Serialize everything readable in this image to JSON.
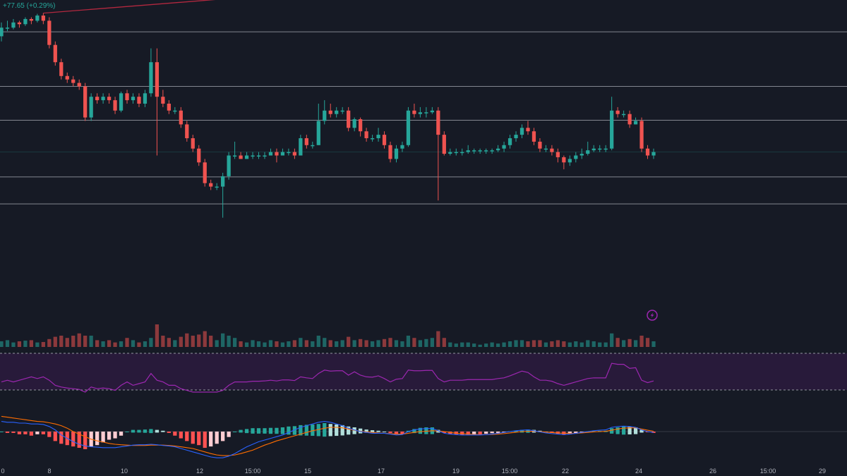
{
  "legend": {
    "change": "+77.65 (+0.29%)"
  },
  "colors": {
    "background": "#161a25",
    "up": "#26a69a",
    "down": "#ef5350",
    "level_line": "#b2b5be",
    "trendline": "#b2283f",
    "rsi_line": "#9c27b0",
    "rsi_band": "#2a1b3d",
    "macd_line": "#2962ff",
    "signal_line": "#ff6d00",
    "hist_up_strong": "#26a69a",
    "hist_up_weak": "#b2dfdb",
    "hist_down_strong": "#ff5252",
    "hist_down_weak": "#ffcdd2"
  },
  "icons": {
    "alert": "lightning-icon"
  },
  "chart_data": {
    "type": "candlestick",
    "x_ticks": [
      "0",
      "8",
      "10",
      "12",
      "15:00",
      "15",
      "17",
      "19",
      "15:00",
      "22",
      "24",
      "26",
      "15:00",
      "29"
    ],
    "horizontal_levels": [
      0.908,
      0.75,
      0.652,
      0.488,
      0.41
    ],
    "candles": [
      [
        0.895,
        0.92,
        0.935,
        0.88
      ],
      [
        0.92,
        0.92,
        0.94,
        0.91
      ],
      [
        0.92,
        0.935,
        0.945,
        0.915
      ],
      [
        0.935,
        0.93,
        0.94,
        0.92
      ],
      [
        0.93,
        0.945,
        0.95,
        0.925
      ],
      [
        0.945,
        0.94,
        0.95,
        0.93
      ],
      [
        0.94,
        0.955,
        0.96,
        0.935
      ],
      [
        0.955,
        0.94,
        0.962,
        0.93
      ],
      [
        0.94,
        0.87,
        0.95,
        0.86
      ],
      [
        0.87,
        0.82,
        0.88,
        0.81
      ],
      [
        0.82,
        0.78,
        0.83,
        0.77
      ],
      [
        0.78,
        0.77,
        0.79,
        0.76
      ],
      [
        0.77,
        0.76,
        0.78,
        0.75
      ],
      [
        0.76,
        0.75,
        0.77,
        0.74
      ],
      [
        0.75,
        0.66,
        0.76,
        0.65
      ],
      [
        0.66,
        0.72,
        0.73,
        0.65
      ],
      [
        0.72,
        0.71,
        0.73,
        0.7
      ],
      [
        0.71,
        0.72,
        0.73,
        0.7
      ],
      [
        0.72,
        0.71,
        0.73,
        0.7
      ],
      [
        0.71,
        0.68,
        0.72,
        0.67
      ],
      [
        0.68,
        0.73,
        0.735,
        0.675
      ],
      [
        0.73,
        0.71,
        0.74,
        0.7
      ],
      [
        0.71,
        0.72,
        0.73,
        0.7
      ],
      [
        0.72,
        0.7,
        0.73,
        0.69
      ],
      [
        0.7,
        0.73,
        0.74,
        0.69
      ],
      [
        0.73,
        0.82,
        0.86,
        0.72
      ],
      [
        0.82,
        0.72,
        0.86,
        0.55
      ],
      [
        0.72,
        0.7,
        0.74,
        0.69
      ],
      [
        0.7,
        0.68,
        0.71,
        0.67
      ],
      [
        0.68,
        0.68,
        0.69,
        0.67
      ],
      [
        0.68,
        0.64,
        0.69,
        0.63
      ],
      [
        0.64,
        0.6,
        0.65,
        0.59
      ],
      [
        0.6,
        0.57,
        0.61,
        0.56
      ],
      [
        0.57,
        0.53,
        0.58,
        0.52
      ],
      [
        0.53,
        0.47,
        0.54,
        0.46
      ],
      [
        0.47,
        0.46,
        0.48,
        0.45
      ],
      [
        0.46,
        0.46,
        0.47,
        0.45
      ],
      [
        0.46,
        0.49,
        0.5,
        0.37
      ],
      [
        0.49,
        0.55,
        0.56,
        0.48
      ],
      [
        0.55,
        0.55,
        0.59,
        0.54
      ],
      [
        0.55,
        0.54,
        0.56,
        0.54
      ],
      [
        0.54,
        0.55,
        0.56,
        0.54
      ],
      [
        0.55,
        0.55,
        0.56,
        0.54
      ],
      [
        0.55,
        0.55,
        0.56,
        0.54
      ],
      [
        0.55,
        0.55,
        0.56,
        0.54
      ],
      [
        0.55,
        0.56,
        0.57,
        0.55
      ],
      [
        0.56,
        0.55,
        0.57,
        0.53
      ],
      [
        0.55,
        0.56,
        0.57,
        0.55
      ],
      [
        0.56,
        0.56,
        0.57,
        0.55
      ],
      [
        0.56,
        0.55,
        0.57,
        0.54
      ],
      [
        0.55,
        0.6,
        0.61,
        0.55
      ],
      [
        0.6,
        0.58,
        0.61,
        0.57
      ],
      [
        0.58,
        0.58,
        0.59,
        0.57
      ],
      [
        0.58,
        0.65,
        0.7,
        0.58
      ],
      [
        0.65,
        0.68,
        0.71,
        0.64
      ],
      [
        0.68,
        0.67,
        0.7,
        0.66
      ],
      [
        0.67,
        0.68,
        0.69,
        0.66
      ],
      [
        0.68,
        0.68,
        0.69,
        0.67
      ],
      [
        0.68,
        0.63,
        0.69,
        0.62
      ],
      [
        0.63,
        0.655,
        0.66,
        0.62
      ],
      [
        0.655,
        0.62,
        0.66,
        0.605
      ],
      [
        0.62,
        0.6,
        0.63,
        0.59
      ],
      [
        0.6,
        0.6,
        0.61,
        0.59
      ],
      [
        0.6,
        0.61,
        0.63,
        0.59
      ],
      [
        0.61,
        0.58,
        0.62,
        0.57
      ],
      [
        0.58,
        0.54,
        0.59,
        0.53
      ],
      [
        0.54,
        0.57,
        0.58,
        0.53
      ],
      [
        0.57,
        0.58,
        0.59,
        0.56
      ],
      [
        0.58,
        0.68,
        0.69,
        0.575
      ],
      [
        0.68,
        0.67,
        0.7,
        0.66
      ],
      [
        0.67,
        0.675,
        0.69,
        0.66
      ],
      [
        0.675,
        0.675,
        0.69,
        0.66
      ],
      [
        0.675,
        0.68,
        0.69,
        0.67
      ],
      [
        0.68,
        0.61,
        0.69,
        0.42
      ],
      [
        0.61,
        0.555,
        0.62,
        0.55
      ],
      [
        0.555,
        0.56,
        0.57,
        0.55
      ],
      [
        0.56,
        0.56,
        0.57,
        0.55
      ],
      [
        0.56,
        0.56,
        0.57,
        0.55
      ],
      [
        0.56,
        0.565,
        0.58,
        0.555
      ],
      [
        0.565,
        0.565,
        0.57,
        0.555
      ],
      [
        0.565,
        0.565,
        0.57,
        0.555
      ],
      [
        0.565,
        0.565,
        0.57,
        0.555
      ],
      [
        0.565,
        0.565,
        0.57,
        0.555
      ],
      [
        0.565,
        0.57,
        0.58,
        0.56
      ],
      [
        0.57,
        0.58,
        0.59,
        0.56
      ],
      [
        0.58,
        0.6,
        0.61,
        0.57
      ],
      [
        0.6,
        0.61,
        0.62,
        0.59
      ],
      [
        0.61,
        0.63,
        0.64,
        0.6
      ],
      [
        0.63,
        0.62,
        0.65,
        0.61
      ],
      [
        0.62,
        0.59,
        0.63,
        0.58
      ],
      [
        0.59,
        0.57,
        0.6,
        0.56
      ],
      [
        0.57,
        0.57,
        0.58,
        0.56
      ],
      [
        0.57,
        0.56,
        0.58,
        0.55
      ],
      [
        0.56,
        0.545,
        0.57,
        0.53
      ],
      [
        0.545,
        0.53,
        0.55,
        0.51
      ],
      [
        0.53,
        0.54,
        0.55,
        0.52
      ],
      [
        0.54,
        0.55,
        0.56,
        0.53
      ],
      [
        0.55,
        0.555,
        0.57,
        0.54
      ],
      [
        0.555,
        0.565,
        0.59,
        0.55
      ],
      [
        0.565,
        0.57,
        0.58,
        0.56
      ],
      [
        0.57,
        0.57,
        0.58,
        0.56
      ],
      [
        0.57,
        0.57,
        0.58,
        0.56
      ],
      [
        0.57,
        0.68,
        0.72,
        0.565
      ],
      [
        0.68,
        0.67,
        0.69,
        0.66
      ],
      [
        0.67,
        0.67,
        0.68,
        0.66
      ],
      [
        0.67,
        0.64,
        0.68,
        0.63
      ],
      [
        0.64,
        0.65,
        0.66,
        0.64
      ],
      [
        0.65,
        0.57,
        0.66,
        0.56
      ],
      [
        0.57,
        0.55,
        0.58,
        0.54
      ],
      [
        0.55,
        0.56,
        0.57,
        0.54
      ]
    ],
    "volume": [
      0.25,
      0.3,
      0.2,
      0.25,
      0.28,
      0.3,
      0.2,
      0.22,
      0.35,
      0.45,
      0.5,
      0.4,
      0.5,
      0.6,
      0.5,
      0.5,
      0.3,
      0.25,
      0.3,
      0.2,
      0.25,
      0.4,
      0.3,
      0.2,
      0.25,
      0.4,
      1.0,
      0.5,
      0.4,
      0.3,
      0.45,
      0.6,
      0.5,
      0.55,
      0.7,
      0.5,
      0.3,
      0.6,
      0.5,
      0.4,
      0.25,
      0.2,
      0.3,
      0.25,
      0.2,
      0.3,
      0.25,
      0.2,
      0.25,
      0.3,
      0.4,
      0.3,
      0.25,
      0.5,
      0.4,
      0.3,
      0.25,
      0.3,
      0.45,
      0.3,
      0.35,
      0.3,
      0.25,
      0.3,
      0.35,
      0.4,
      0.3,
      0.25,
      0.5,
      0.4,
      0.3,
      0.35,
      0.4,
      0.7,
      0.4,
      0.2,
      0.15,
      0.2,
      0.2,
      0.15,
      0.1,
      0.15,
      0.2,
      0.15,
      0.2,
      0.25,
      0.3,
      0.3,
      0.25,
      0.3,
      0.3,
      0.2,
      0.25,
      0.3,
      0.25,
      0.2,
      0.25,
      0.2,
      0.3,
      0.25,
      0.2,
      0.2,
      0.6,
      0.4,
      0.3,
      0.35,
      0.3,
      0.5,
      0.4,
      0.25
    ],
    "rsi": [
      0.3,
      0.35,
      0.3,
      0.35,
      0.4,
      0.45,
      0.4,
      0.45,
      0.35,
      0.2,
      0.15,
      0.12,
      0.1,
      0.08,
      0.0,
      0.15,
      0.1,
      0.12,
      0.1,
      0.05,
      0.2,
      0.3,
      0.2,
      0.25,
      0.3,
      0.55,
      0.35,
      0.3,
      0.2,
      0.2,
      0.1,
      0.05,
      0.0,
      0.0,
      0.0,
      0.0,
      0.0,
      0.05,
      0.2,
      0.3,
      0.3,
      0.3,
      0.32,
      0.32,
      0.33,
      0.35,
      0.33,
      0.36,
      0.36,
      0.34,
      0.45,
      0.42,
      0.4,
      0.55,
      0.65,
      0.62,
      0.63,
      0.63,
      0.5,
      0.6,
      0.5,
      0.45,
      0.44,
      0.48,
      0.4,
      0.3,
      0.38,
      0.4,
      0.65,
      0.63,
      0.63,
      0.64,
      0.64,
      0.4,
      0.3,
      0.35,
      0.35,
      0.35,
      0.37,
      0.37,
      0.37,
      0.37,
      0.37,
      0.4,
      0.42,
      0.48,
      0.55,
      0.62,
      0.58,
      0.45,
      0.35,
      0.35,
      0.32,
      0.25,
      0.2,
      0.25,
      0.3,
      0.35,
      0.4,
      0.42,
      0.42,
      0.42,
      0.85,
      0.82,
      0.82,
      0.7,
      0.72,
      0.35,
      0.28,
      0.33
    ],
    "macd": {
      "zero_line": true,
      "hist": [
        0.0,
        -0.05,
        -0.05,
        -0.1,
        -0.1,
        -0.15,
        -0.1,
        -0.1,
        -0.2,
        -0.35,
        -0.45,
        -0.5,
        -0.55,
        -0.6,
        -0.65,
        -0.55,
        -0.5,
        -0.4,
        -0.3,
        -0.25,
        -0.15,
        0.0,
        0.1,
        0.1,
        0.12,
        0.15,
        0.1,
        0.05,
        -0.05,
        -0.15,
        -0.25,
        -0.35,
        -0.45,
        -0.5,
        -0.6,
        -0.55,
        -0.45,
        -0.35,
        -0.2,
        0.0,
        0.1,
        0.15,
        0.2,
        0.2,
        0.2,
        0.22,
        0.22,
        0.25,
        0.3,
        0.32,
        0.38,
        0.4,
        0.42,
        0.45,
        0.5,
        0.45,
        0.42,
        0.38,
        0.3,
        0.25,
        0.18,
        0.12,
        0.08,
        0.05,
        0.0,
        -0.05,
        -0.1,
        -0.1,
        0.05,
        0.15,
        0.22,
        0.25,
        0.25,
        0.1,
        -0.05,
        -0.1,
        -0.1,
        -0.12,
        -0.12,
        -0.1,
        -0.1,
        -0.08,
        -0.06,
        -0.05,
        -0.02,
        0.02,
        0.06,
        0.1,
        0.12,
        0.1,
        0.05,
        0.0,
        -0.05,
        -0.08,
        -0.12,
        -0.1,
        -0.08,
        -0.05,
        0.0,
        0.02,
        0.04,
        0.05,
        0.2,
        0.25,
        0.3,
        0.28,
        0.25,
        0.1,
        -0.02,
        -0.05
      ],
      "line": [
        0.6,
        0.55,
        0.55,
        0.5,
        0.5,
        0.45,
        0.45,
        0.42,
        0.3,
        0.1,
        -0.2,
        -0.4,
        -0.6,
        -0.75,
        -0.85,
        -0.9,
        -0.92,
        -0.95,
        -0.95,
        -0.95,
        -0.9,
        -0.85,
        -0.8,
        -0.78,
        -0.78,
        -0.75,
        -0.78,
        -0.82,
        -0.85,
        -0.9,
        -1.0,
        -1.1,
        -1.2,
        -1.3,
        -1.4,
        -1.5,
        -1.55,
        -1.55,
        -1.45,
        -1.3,
        -1.1,
        -0.9,
        -0.75,
        -0.6,
        -0.5,
        -0.4,
        -0.3,
        -0.2,
        -0.05,
        0.1,
        0.25,
        0.35,
        0.45,
        0.55,
        0.6,
        0.55,
        0.45,
        0.35,
        0.2,
        0.1,
        0.0,
        -0.05,
        -0.1,
        -0.1,
        -0.1,
        -0.15,
        -0.2,
        -0.18,
        0.0,
        0.1,
        0.15,
        0.18,
        0.18,
        0.05,
        -0.1,
        -0.15,
        -0.18,
        -0.2,
        -0.2,
        -0.2,
        -0.2,
        -0.18,
        -0.15,
        -0.1,
        -0.05,
        0.0,
        0.05,
        0.08,
        0.1,
        0.05,
        -0.02,
        -0.08,
        -0.12,
        -0.15,
        -0.18,
        -0.15,
        -0.1,
        -0.05,
        0.0,
        0.05,
        0.08,
        0.1,
        0.25,
        0.3,
        0.32,
        0.3,
        0.25,
        0.1,
        0.0,
        -0.05
      ],
      "signal": [
        0.9,
        0.85,
        0.8,
        0.75,
        0.7,
        0.65,
        0.6,
        0.58,
        0.52,
        0.45,
        0.35,
        0.2,
        0.0,
        -0.15,
        -0.3,
        -0.45,
        -0.55,
        -0.62,
        -0.7,
        -0.75,
        -0.78,
        -0.8,
        -0.82,
        -0.82,
        -0.82,
        -0.8,
        -0.8,
        -0.8,
        -0.82,
        -0.85,
        -0.9,
        -0.95,
        -1.0,
        -1.1,
        -1.2,
        -1.3,
        -1.38,
        -1.42,
        -1.42,
        -1.38,
        -1.3,
        -1.2,
        -1.1,
        -0.95,
        -0.8,
        -0.68,
        -0.55,
        -0.45,
        -0.35,
        -0.25,
        -0.15,
        -0.05,
        0.05,
        0.12,
        0.2,
        0.25,
        0.25,
        0.22,
        0.15,
        0.08,
        0.02,
        -0.02,
        -0.05,
        -0.08,
        -0.1,
        -0.12,
        -0.15,
        -0.15,
        -0.1,
        -0.05,
        0.0,
        0.02,
        0.05,
        0.04,
        0.0,
        -0.05,
        -0.1,
        -0.12,
        -0.15,
        -0.17,
        -0.18,
        -0.18,
        -0.17,
        -0.15,
        -0.12,
        -0.08,
        -0.04,
        0.0,
        0.02,
        0.02,
        0.0,
        -0.03,
        -0.06,
        -0.08,
        -0.1,
        -0.1,
        -0.1,
        -0.08,
        -0.05,
        -0.02,
        0.0,
        0.02,
        0.08,
        0.15,
        0.2,
        0.22,
        0.22,
        0.15,
        0.08,
        0.02
      ]
    }
  }
}
